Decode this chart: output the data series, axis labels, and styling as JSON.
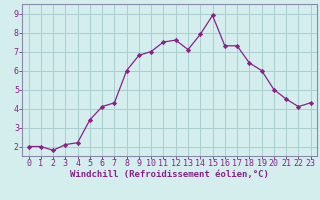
{
  "x": [
    0,
    1,
    2,
    3,
    4,
    5,
    6,
    7,
    8,
    9,
    10,
    11,
    12,
    13,
    14,
    15,
    16,
    17,
    18,
    19,
    20,
    21,
    22,
    23
  ],
  "y": [
    2.0,
    2.0,
    1.8,
    2.1,
    2.2,
    3.4,
    4.1,
    4.3,
    6.0,
    6.8,
    7.0,
    7.5,
    7.6,
    7.1,
    7.9,
    8.9,
    7.3,
    7.3,
    6.4,
    6.0,
    5.0,
    4.5,
    4.1,
    4.3
  ],
  "line_color": "#882288",
  "marker": "D",
  "marker_size": 2.2,
  "bg_color": "#d4eeee",
  "grid_color": "#aacece",
  "xlabel": "Windchill (Refroidissement éolien,°C)",
  "xlabel_fontsize": 6.5,
  "ylabel_ticks": [
    2,
    3,
    4,
    5,
    6,
    7,
    8,
    9
  ],
  "xlim": [
    -0.5,
    23.5
  ],
  "ylim": [
    1.5,
    9.5
  ],
  "tick_fontsize": 6.0,
  "label_color": "#882288",
  "spine_color": "#8888aa",
  "lw": 0.9
}
